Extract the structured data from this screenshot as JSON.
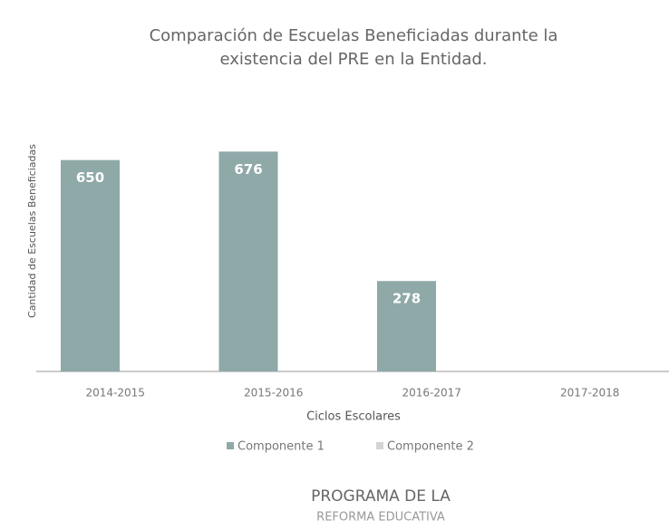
{
  "chart_data": {
    "type": "bar",
    "title": [
      "Comparación de Escuelas Beneficiadas durante la",
      "existencia del PRE en la Entidad."
    ],
    "categories": [
      "2014-2015",
      "2015-2016",
      "2016-2017",
      "2017-2018"
    ],
    "series": [
      {
        "name": "Componente 1",
        "color": "#8fa8a8",
        "values": [
          650,
          676,
          278,
          null
        ]
      },
      {
        "name": "Componente 2",
        "color": "#d4d4d4",
        "values": [
          null,
          null,
          null,
          null
        ]
      }
    ],
    "ylim": [
      0,
      780
    ],
    "x_label": "Ciclos Escolares",
    "y_label": "Cantidad de Escuelas Beneficiadas",
    "legend": "bottom"
  },
  "footer": {
    "line1": "PROGRAMA DE LA",
    "line2": "REFORMA EDUCATIVA"
  }
}
